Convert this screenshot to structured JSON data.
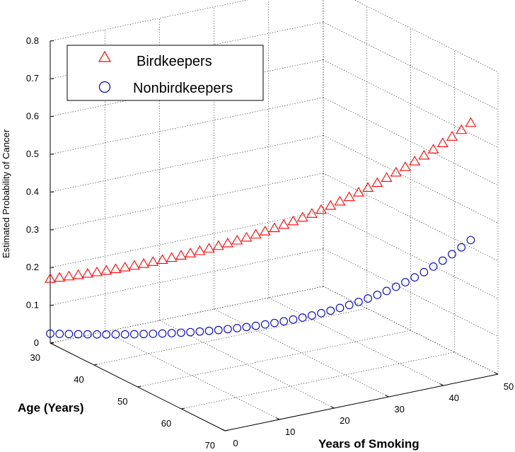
{
  "chart_data": {
    "type": "scatter",
    "title": "",
    "xlabel": "Years of Smoking",
    "ylabel": "Age (Years)",
    "zlabel": "Estimated Probability of Cancer",
    "x_ticks": [
      "0",
      "10",
      "20",
      "30",
      "40",
      "50"
    ],
    "y_ticks": [
      "30",
      "40",
      "50",
      "60",
      "70"
    ],
    "z_ticks": [
      "0",
      "0.1",
      "0.2",
      "0.3",
      "0.4",
      "0.5",
      "0.6",
      "0.7",
      "0.8"
    ],
    "xlim": [
      0,
      50
    ],
    "ylim": [
      30,
      70
    ],
    "zlim": [
      0,
      0.8
    ],
    "grid": true,
    "legend_position": "top-left",
    "x_start": 0,
    "x_end": 45,
    "n_points": 46,
    "series": [
      {
        "name": "Birdkeepers",
        "marker": "triangle",
        "color": "#ff0000",
        "age_start": 30,
        "age_end": 70,
        "prob_start": 0.17,
        "prob_end": 0.68
      },
      {
        "name": "Nonbirdkeepers",
        "marker": "circle",
        "color": "#0000cc",
        "age_start": 30,
        "age_end": 70,
        "prob_start": 0.025,
        "prob_end": 0.37
      }
    ]
  }
}
